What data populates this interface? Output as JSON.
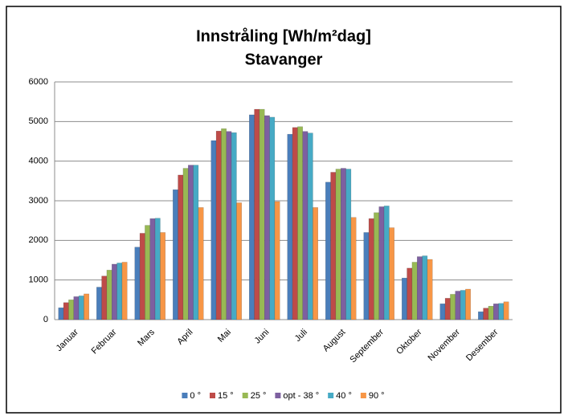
{
  "chart_data": {
    "type": "bar",
    "title": "Innstråling [Wh/m²dag]",
    "subtitle": "Stavanger",
    "categories": [
      "Januar",
      "Februar",
      "Mars",
      "April",
      "Mai",
      "Juni",
      "Juli",
      "August",
      "September",
      "Oktober",
      "November",
      "Desember"
    ],
    "series": [
      {
        "name": "0 °",
        "color": "#4a7ebb",
        "values": [
          300,
          820,
          1830,
          3280,
          4520,
          5170,
          4680,
          3470,
          2200,
          1050,
          400,
          200
        ]
      },
      {
        "name": "15 °",
        "color": "#be4b48",
        "values": [
          430,
          1100,
          2180,
          3650,
          4760,
          5310,
          4850,
          3720,
          2550,
          1300,
          540,
          290
        ]
      },
      {
        "name": "25 °",
        "color": "#98b954",
        "values": [
          500,
          1250,
          2380,
          3820,
          4820,
          5310,
          4870,
          3800,
          2700,
          1450,
          640,
          340
        ]
      },
      {
        "name": "opt - 38 °",
        "color": "#7d60a0",
        "values": [
          580,
          1400,
          2550,
          3900,
          4750,
          5150,
          4750,
          3820,
          2850,
          1590,
          720,
          400
        ]
      },
      {
        "name": "40 °",
        "color": "#46aac5",
        "values": [
          600,
          1430,
          2560,
          3900,
          4720,
          5110,
          4710,
          3800,
          2870,
          1610,
          740,
          410
        ]
      },
      {
        "name": "90 °",
        "color": "#f79646",
        "values": [
          650,
          1450,
          2200,
          2830,
          2950,
          2980,
          2830,
          2580,
          2320,
          1520,
          770,
          450
        ]
      }
    ],
    "ylim": [
      0,
      6000
    ],
    "yticks": [
      0,
      1000,
      2000,
      3000,
      4000,
      5000,
      6000
    ],
    "grid": true,
    "legend": "bottom"
  }
}
